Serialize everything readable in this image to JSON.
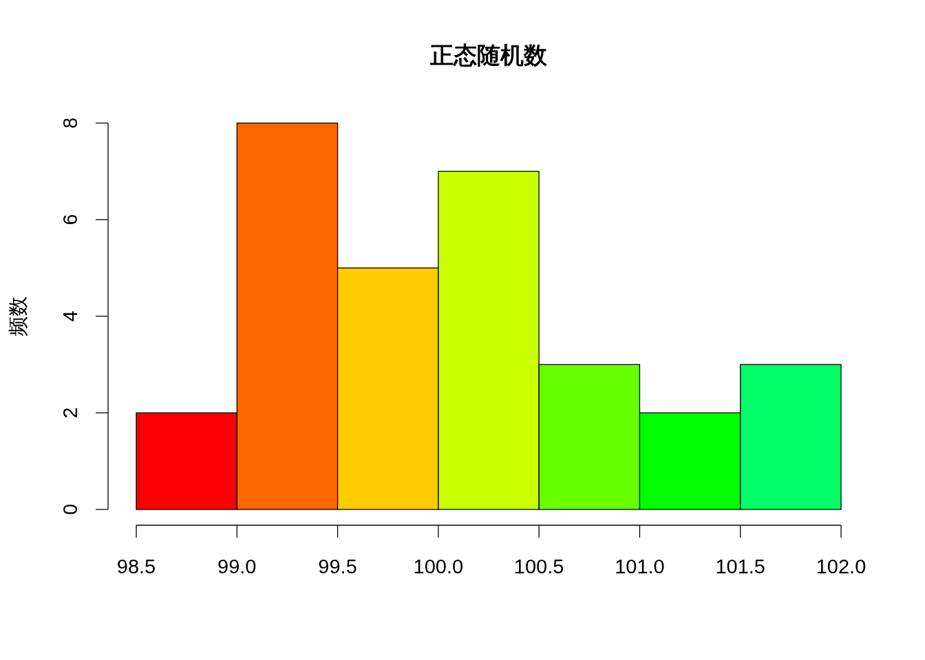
{
  "chart_data": {
    "type": "histogram",
    "title": "正态随机数",
    "ylabel": "频数",
    "bins": [
      98.5,
      99,
      99.5,
      100,
      100.5,
      101,
      101.5,
      102
    ],
    "values": [
      2,
      8,
      5,
      7,
      3,
      2,
      3
    ],
    "colors": [
      "#ff0000",
      "#ff6600",
      "#ffcc00",
      "#ccff00",
      "#66ff00",
      "#00ff00",
      "#00ff66"
    ],
    "xlim": [
      98.5,
      102
    ],
    "xticks": [
      98.5,
      {
        "value": 99,
        "label": "99.0"
      },
      99.5,
      {
        "value": 100,
        "label": "100.0"
      },
      100.5,
      {
        "value": 101,
        "label": "101.0"
      },
      101.5,
      {
        "value": 102,
        "label": "102.0"
      }
    ],
    "ylim": [
      0,
      8
    ],
    "yticks": [
      0,
      2,
      4,
      6,
      8
    ],
    "grid": false
  }
}
